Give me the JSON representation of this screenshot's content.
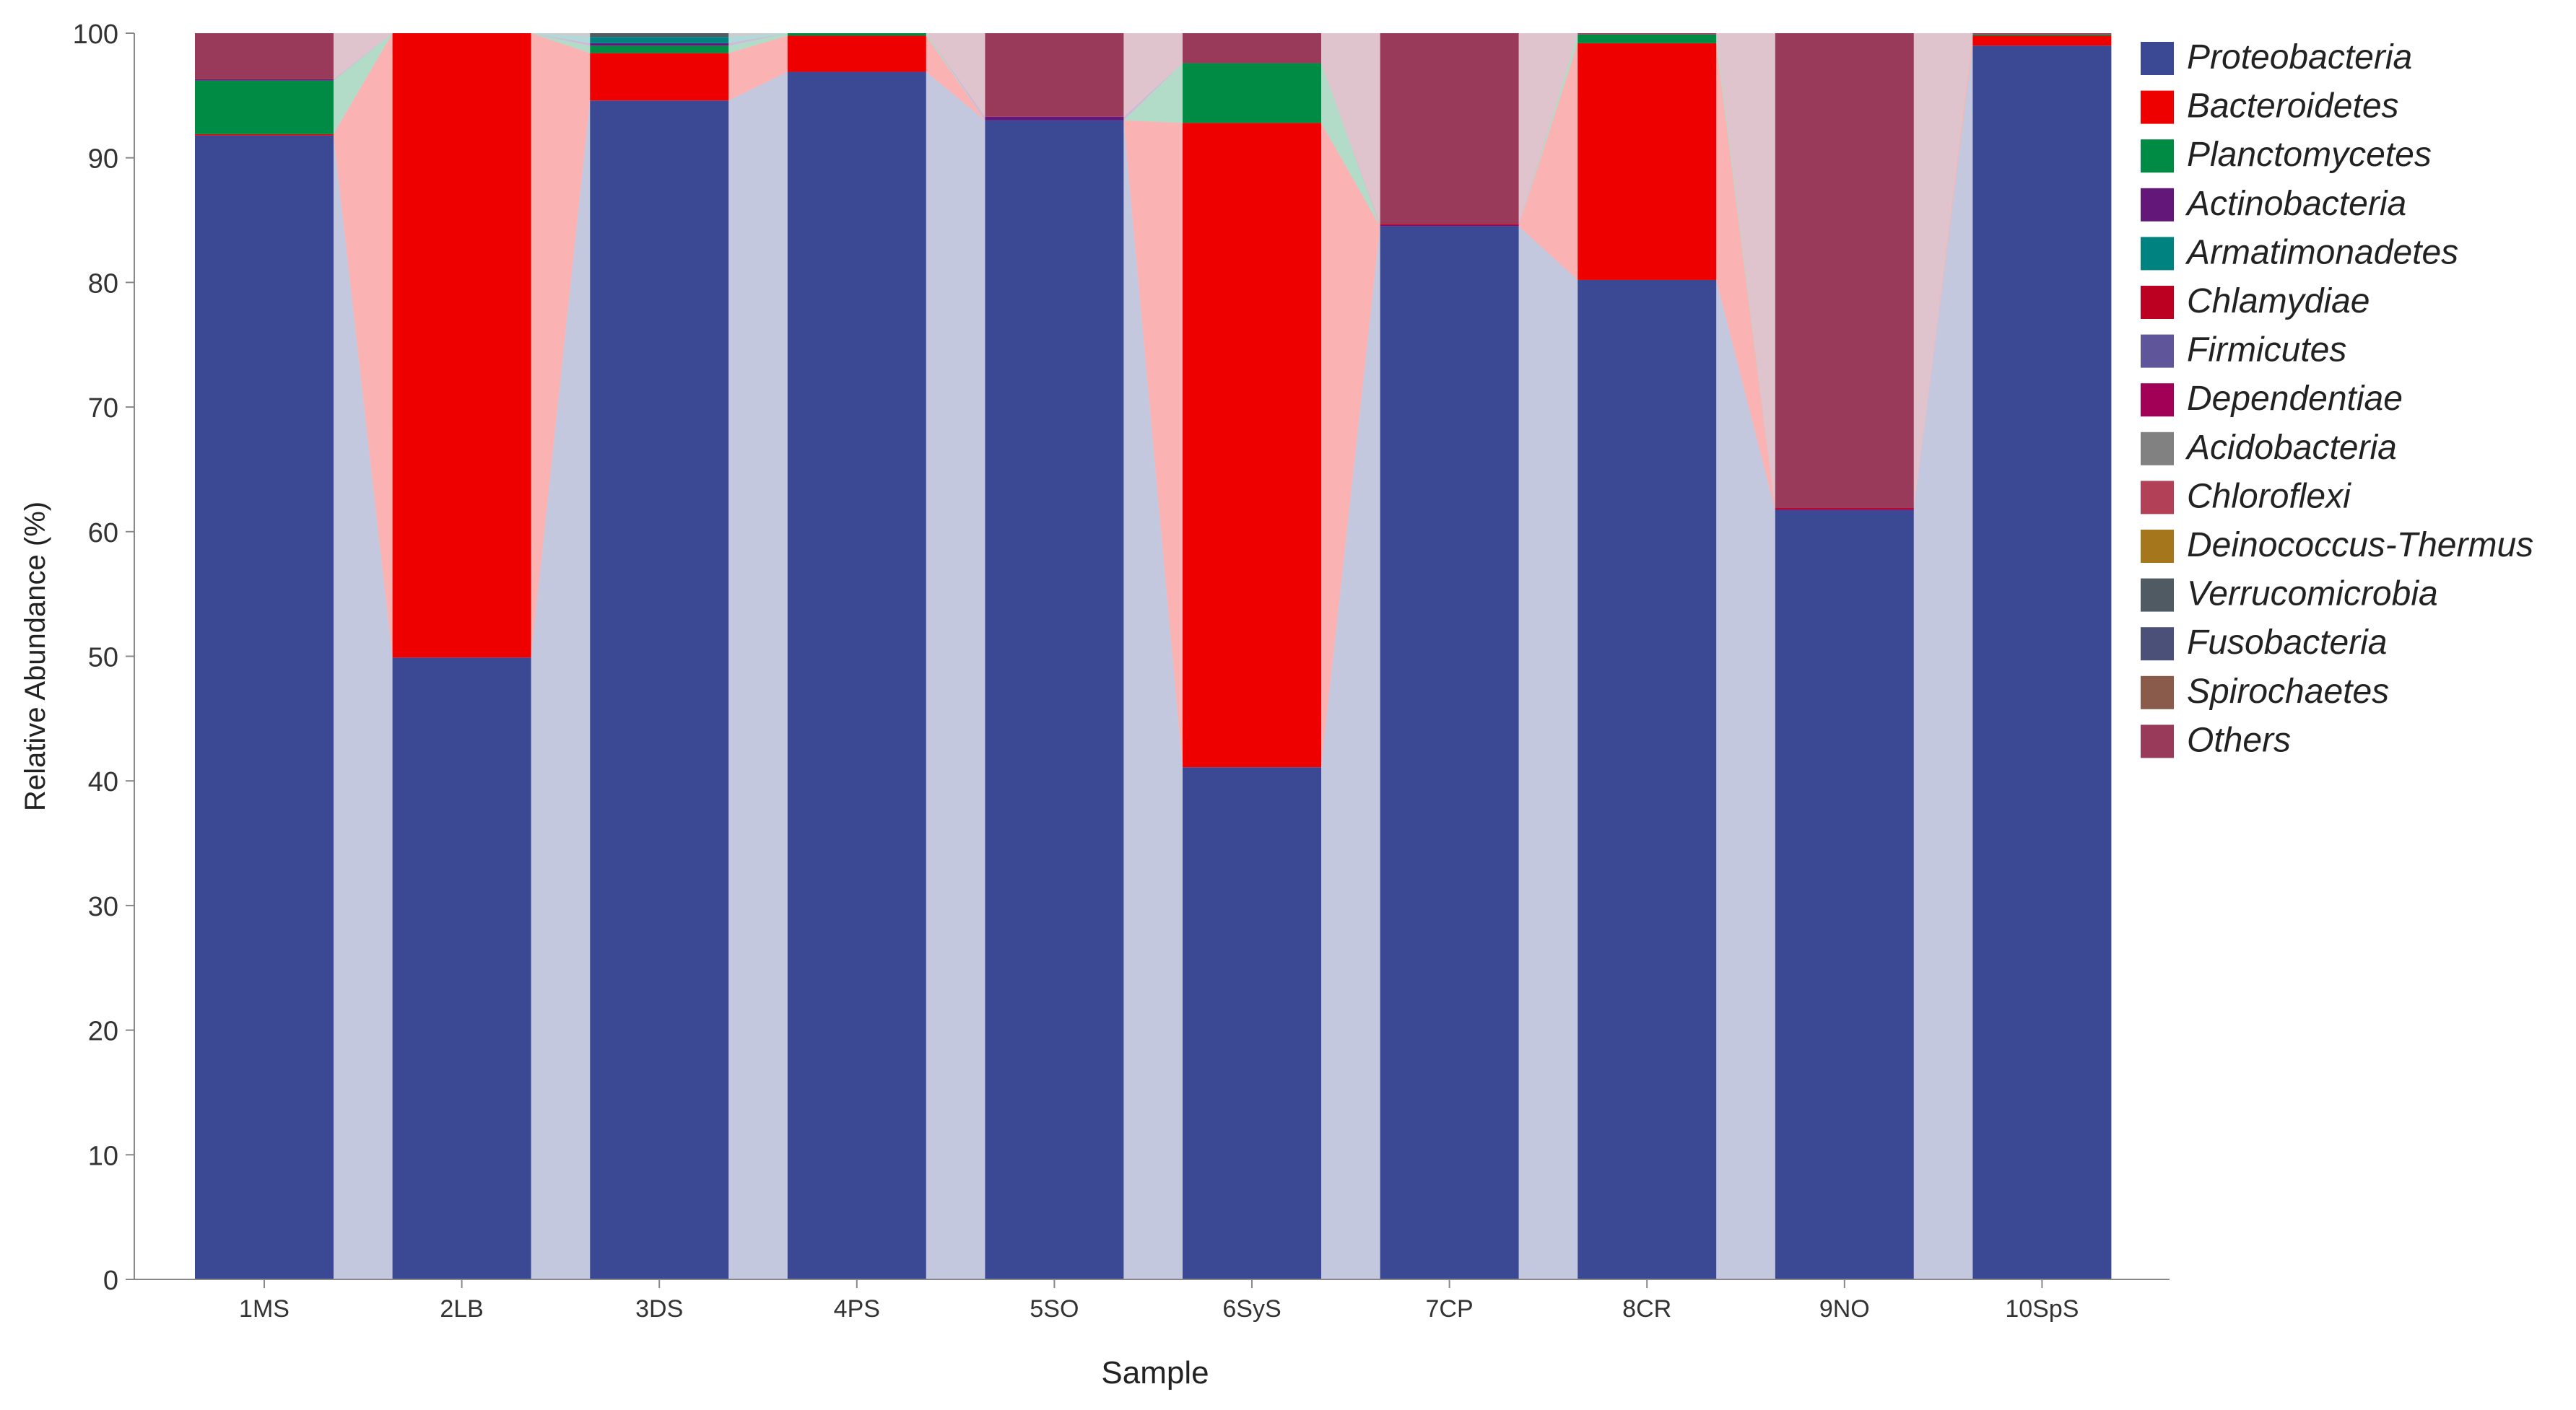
{
  "chart_data": {
    "type": "bar",
    "stacked": true,
    "connectors": true,
    "xlabel": "Sample",
    "ylabel": "Relative Abundance (%)",
    "ylim": [
      0,
      100
    ],
    "yticks": [
      0,
      10,
      20,
      30,
      40,
      50,
      60,
      70,
      80,
      90,
      100
    ],
    "grid": false,
    "legend_position": "right",
    "categories": [
      "1MS",
      "2LB",
      "3DS",
      "4PS",
      "5SO",
      "6SyS",
      "7CP",
      "8CR",
      "9NO",
      "10SpS"
    ],
    "series": [
      {
        "name": "Proteobacteria",
        "color": "#3b4893",
        "values": [
          91.8,
          49.9,
          94.6,
          96.9,
          93.0,
          41.1,
          84.5,
          80.2,
          61.7,
          99.0
        ]
      },
      {
        "name": "Bacteroidetes",
        "color": "#ee0000",
        "values": [
          0.1,
          50.1,
          3.8,
          2.9,
          0.0,
          51.7,
          0.0,
          19.0,
          0.0,
          0.8
        ]
      },
      {
        "name": "Planctomycetes",
        "color": "#008b45",
        "values": [
          4.3,
          0.0,
          0.6,
          0.2,
          0.0,
          4.8,
          0.0,
          0.7,
          0.0,
          0.1
        ]
      },
      {
        "name": "Actinobacteria",
        "color": "#631879",
        "values": [
          0.1,
          0.0,
          0.2,
          0.0,
          0.3,
          0.0,
          0.1,
          0.0,
          0.1,
          0.0
        ]
      },
      {
        "name": "Armatimonadetes",
        "color": "#008280",
        "values": [
          0.0,
          0.0,
          0.5,
          0.0,
          0.0,
          0.0,
          0.0,
          0.0,
          0.0,
          0.0
        ]
      },
      {
        "name": "Chlamydiae",
        "color": "#bb0021",
        "values": [
          0.0,
          0.0,
          0.0,
          0.0,
          0.0,
          0.0,
          0.1,
          0.0,
          0.1,
          0.0
        ]
      },
      {
        "name": "Firmicutes",
        "color": "#5f559b",
        "values": [
          0.0,
          0.0,
          0.0,
          0.0,
          0.0,
          0.0,
          0.0,
          0.0,
          0.0,
          0.0
        ]
      },
      {
        "name": "Dependentiae",
        "color": "#a20056",
        "values": [
          0.0,
          0.0,
          0.0,
          0.0,
          0.0,
          0.0,
          0.0,
          0.0,
          0.0,
          0.0
        ]
      },
      {
        "name": "Acidobacteria",
        "color": "#808180",
        "values": [
          0.0,
          0.0,
          0.0,
          0.0,
          0.0,
          0.0,
          0.0,
          0.0,
          0.0,
          0.0
        ]
      },
      {
        "name": "Chloroflexi",
        "color": "#b24158",
        "values": [
          0.0,
          0.0,
          0.0,
          0.0,
          0.0,
          0.0,
          0.0,
          0.0,
          0.0,
          0.0
        ]
      },
      {
        "name": "Deinococcus-Thermus",
        "color": "#a6761d",
        "values": [
          0.0,
          0.0,
          0.0,
          0.0,
          0.0,
          0.0,
          0.0,
          0.0,
          0.0,
          0.0
        ]
      },
      {
        "name": "Verrucomicrobia",
        "color": "#4f5a62",
        "values": [
          0.0,
          0.0,
          0.3,
          0.0,
          0.0,
          0.0,
          0.0,
          0.0,
          0.0,
          0.0
        ]
      },
      {
        "name": "Fusobacteria",
        "color": "#4b5079",
        "values": [
          0.0,
          0.0,
          0.0,
          0.0,
          0.0,
          0.0,
          0.0,
          0.0,
          0.0,
          0.0
        ]
      },
      {
        "name": "Spirochaetes",
        "color": "#8a5a4b",
        "values": [
          0.0,
          0.0,
          0.0,
          0.0,
          0.0,
          0.0,
          0.0,
          0.0,
          0.0,
          0.0
        ]
      },
      {
        "name": "Others",
        "color": "#993a5a",
        "values": [
          3.7,
          0.0,
          0.0,
          0.0,
          6.7,
          2.4,
          15.3,
          0.1,
          38.1,
          0.1
        ]
      }
    ]
  }
}
